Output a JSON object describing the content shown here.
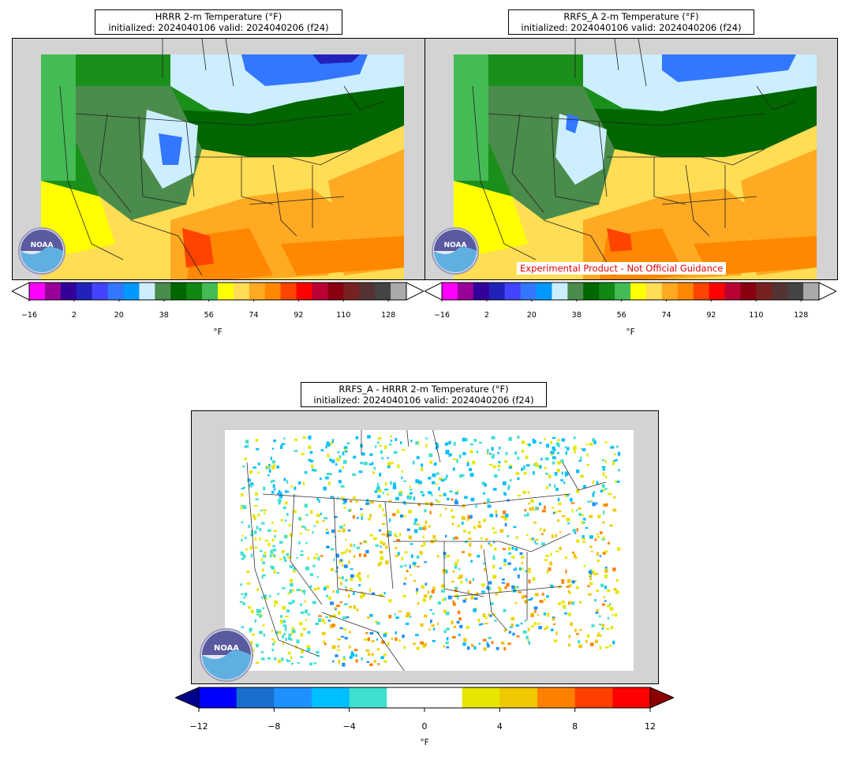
{
  "panels": [
    {
      "id": "hrrr",
      "title_line1": "HRRR 2-m Temperature (°F)",
      "title_line2": "initialized: 2024040106 valid: 2024040206 (f24)"
    },
    {
      "id": "rrfs",
      "title_line1": "RRFS_A 2-m Temperature (°F)",
      "title_line2": "initialized: 2024040106 valid: 2024040206 (f24)",
      "warning": "Experimental Product - Not Official Guidance"
    },
    {
      "id": "diff",
      "title_line1": "RRFS_A - HRRR 2-m Temperature (°F)",
      "title_line2": "initialized: 2024040106 valid: 2024040206 (f24)"
    }
  ],
  "temp_colorbar": {
    "unit": "°F",
    "ticks": [
      "−16",
      "2",
      "20",
      "38",
      "56",
      "74",
      "92",
      "110",
      "128"
    ],
    "colors": [
      "#ff00ff",
      "#990099",
      "#330099",
      "#2222bb",
      "#4444ff",
      "#3377ff",
      "#0099ff",
      "#cceeff",
      "#4b8b4b",
      "#006600",
      "#118811",
      "#44bb55",
      "#ffff00",
      "#ffdd55",
      "#ffaa22",
      "#ff8800",
      "#ff4400",
      "#ff0000",
      "#bb0033",
      "#880011",
      "#772222",
      "#553333",
      "#444444",
      "#aaaaaa"
    ]
  },
  "diff_colorbar": {
    "unit": "°F",
    "ticks": [
      "−12",
      "−8",
      "−4",
      "0",
      "4",
      "8",
      "12"
    ],
    "colors": [
      "#0000ff",
      "#1a6fcc",
      "#1e90ff",
      "#00bfff",
      "#40e0d0",
      "#ffffff",
      "#ffffff",
      "#e6e600",
      "#f0c800",
      "#ff8000",
      "#ff4000",
      "#ff0000"
    ],
    "under_color": "#00008b",
    "over_color": "#8b0000"
  },
  "logo": {
    "text": "NOAA"
  }
}
